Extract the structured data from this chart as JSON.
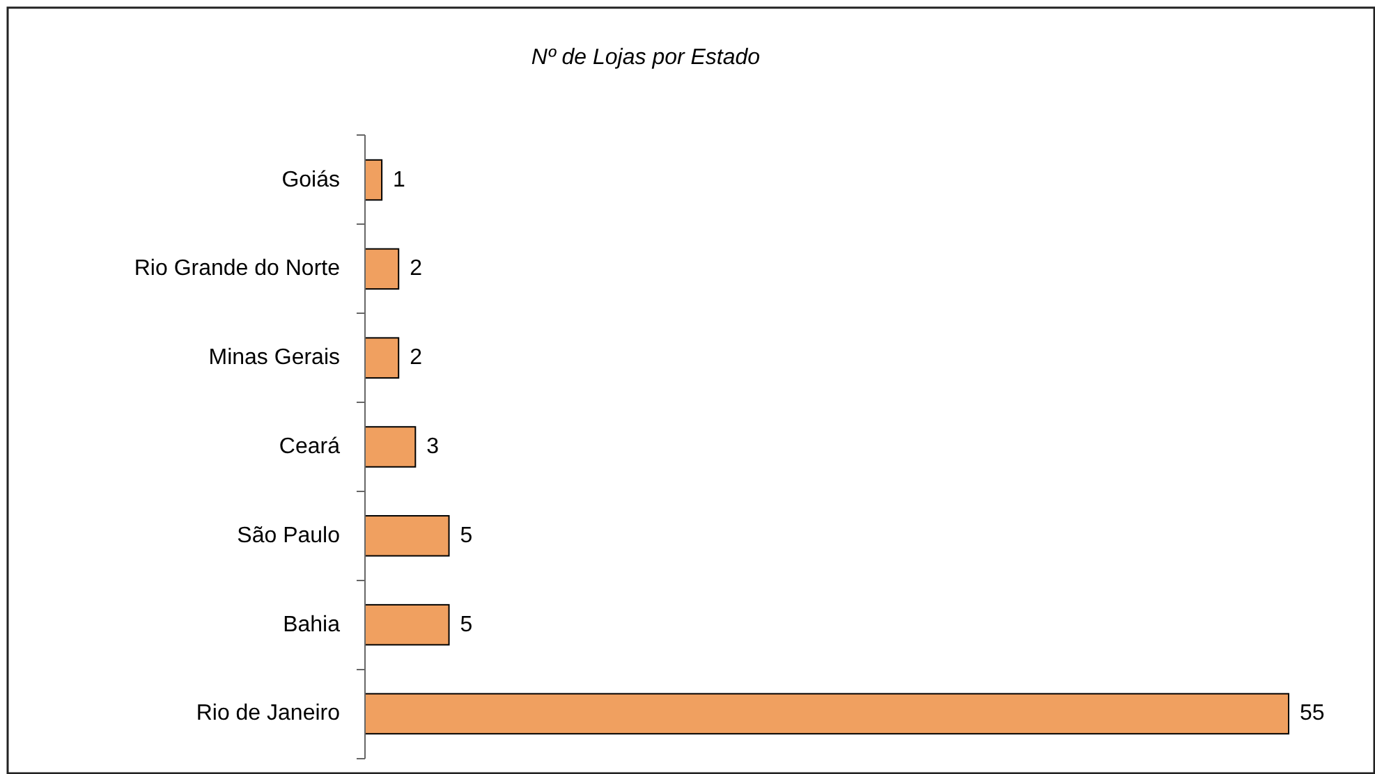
{
  "chart_data": {
    "type": "bar",
    "orientation": "horizontal",
    "title": "Nº de Lojas por Estado",
    "categories": [
      "Goiás",
      "Rio Grande do Norte",
      "Minas Gerais",
      "Ceará",
      "São Paulo",
      "Bahia",
      "Rio de Janeiro"
    ],
    "values": [
      1,
      2,
      2,
      3,
      5,
      5,
      55
    ],
    "color": "#f0a060",
    "data_labels": true
  }
}
